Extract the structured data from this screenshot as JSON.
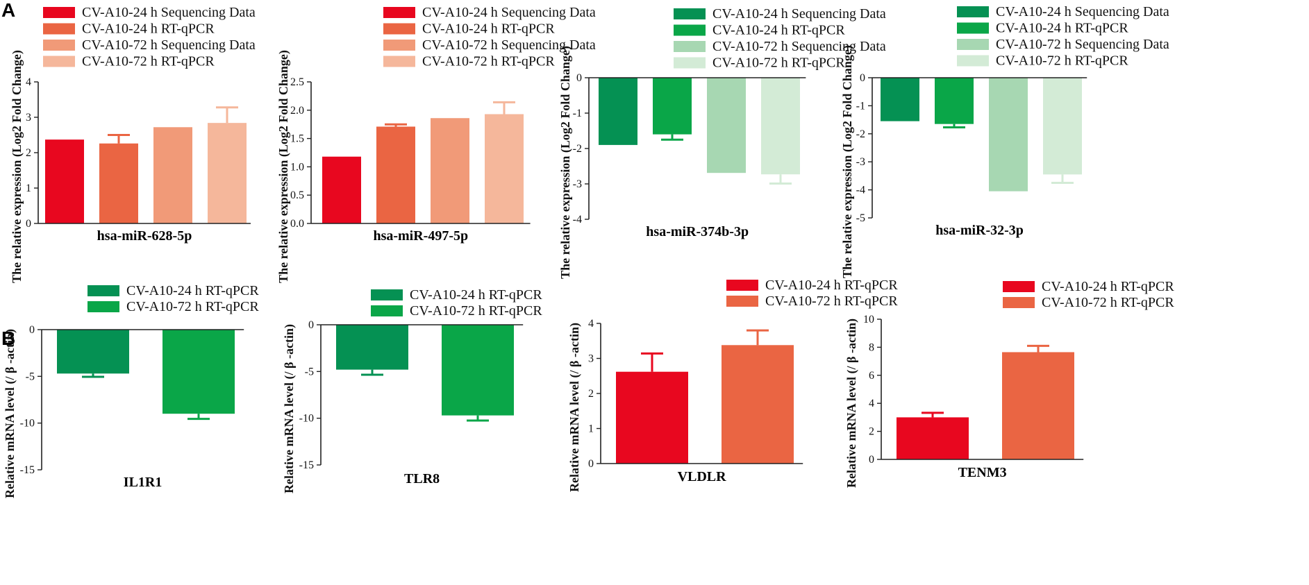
{
  "panels": {
    "a": "A",
    "b": "B"
  },
  "chart_data": [
    {
      "type": "bar",
      "title": "hsa-miR-628-5p",
      "ylabel": "The relative expression (Log2 Fold Change)",
      "ylim": [
        0,
        4
      ],
      "yticks": [
        0,
        1,
        2,
        3,
        4
      ],
      "ytick_labels": [
        "0",
        "1",
        "2",
        "3",
        "4"
      ],
      "series": [
        {
          "name": "CV-A10-24 h Sequencing Data",
          "value": 2.37,
          "error": 0,
          "color": "#e8071f"
        },
        {
          "name": "CV-A10-24 h RT-qPCR",
          "value": 2.26,
          "error": 0.24,
          "color": "#ea6543"
        },
        {
          "name": "CV-A10-72 h Sequencing Data",
          "value": 2.72,
          "error": 0,
          "color": "#f19a78"
        },
        {
          "name": "CV-A10-72 h RT-qPCR",
          "value": 2.84,
          "error": 0.44,
          "color": "#f5b79b"
        }
      ]
    },
    {
      "type": "bar",
      "title": "hsa-miR-497-5p",
      "ylabel": "The relative expression (Log2 Fold Change)",
      "ylim": [
        0,
        2.5
      ],
      "yticks": [
        0,
        0.5,
        1,
        1.5,
        2,
        2.5
      ],
      "ytick_labels": [
        "0.0",
        "0.5",
        "1.0",
        "1.5",
        "2.0",
        "2.5"
      ],
      "series": [
        {
          "name": "CV-A10-24 h Sequencing Data",
          "value": 1.18,
          "error": 0,
          "color": "#e8071f"
        },
        {
          "name": "CV-A10-24 h RT-qPCR",
          "value": 1.71,
          "error": 0.04,
          "color": "#ea6543"
        },
        {
          "name": "CV-A10-72 h Sequencing Data",
          "value": 1.86,
          "error": 0,
          "color": "#f19a78"
        },
        {
          "name": "CV-A10-72 h RT-qPCR",
          "value": 1.93,
          "error": 0.21,
          "color": "#f5b79b"
        }
      ]
    },
    {
      "type": "bar",
      "title": "hsa-miR-374b-3p",
      "ylabel": "The relative expression (Log2 Fold Change)",
      "ylim": [
        -4,
        0
      ],
      "yticks": [
        -4,
        -3,
        -2,
        -1,
        0
      ],
      "ytick_labels": [
        "-4",
        "-3",
        "-2",
        "-1",
        "0"
      ],
      "series": [
        {
          "name": "CV-A10-24 h Sequencing Data",
          "value": -1.9,
          "error": 0,
          "color": "#059153"
        },
        {
          "name": "CV-A10-24 h RT-qPCR",
          "value": -1.6,
          "error": 0.15,
          "color": "#0aa648"
        },
        {
          "name": "CV-A10-72 h Sequencing Data",
          "value": -2.69,
          "error": 0,
          "color": "#a7d7b2"
        },
        {
          "name": "CV-A10-72 h RT-qPCR",
          "value": -2.73,
          "error": 0.26,
          "color": "#d3ebd6"
        }
      ]
    },
    {
      "type": "bar",
      "title": "hsa-miR-32-3p",
      "ylabel": "The relative expression (Log2 Fold Change)",
      "ylim": [
        -5,
        0
      ],
      "yticks": [
        -5,
        -4,
        -3,
        -2,
        -1,
        0
      ],
      "ytick_labels": [
        "-5",
        "-4",
        "-3",
        "-2",
        "-1",
        "0"
      ],
      "series": [
        {
          "name": "CV-A10-24 h Sequencing Data",
          "value": -1.55,
          "error": 0,
          "color": "#059153"
        },
        {
          "name": "CV-A10-24 h RT-qPCR",
          "value": -1.65,
          "error": 0.12,
          "color": "#0aa648"
        },
        {
          "name": "CV-A10-72 h Sequencing Data",
          "value": -4.05,
          "error": 0,
          "color": "#a7d7b2"
        },
        {
          "name": "CV-A10-72 h RT-qPCR",
          "value": -3.45,
          "error": 0.3,
          "color": "#d3ebd6"
        }
      ]
    },
    {
      "type": "bar",
      "title": "IL1R1",
      "ylabel": "Relative mRNA level (/ β -actin)",
      "ylim": [
        -15,
        0
      ],
      "yticks": [
        -15,
        -10,
        -5,
        0
      ],
      "ytick_labels": [
        "-15",
        "-10",
        "-5",
        "0"
      ],
      "series": [
        {
          "name": "CV-A10-24 h RT-qPCR",
          "value": -4.7,
          "error": 0.35,
          "color": "#059153"
        },
        {
          "name": "CV-A10-72 h RT-qPCR",
          "value": -9.0,
          "error": 0.55,
          "color": "#0aa648"
        }
      ]
    },
    {
      "type": "bar",
      "title": "TLR8",
      "ylabel": "Relative mRNA level (/ β -actin)",
      "ylim": [
        -15,
        0
      ],
      "yticks": [
        -15,
        -10,
        -5,
        0
      ],
      "ytick_labels": [
        "-15",
        "-10",
        "-5",
        "0"
      ],
      "series": [
        {
          "name": "CV-A10-24 h RT-qPCR",
          "value": -4.8,
          "error": 0.55,
          "color": "#059153"
        },
        {
          "name": "CV-A10-72 h RT-qPCR",
          "value": -9.7,
          "error": 0.55,
          "color": "#0aa648"
        }
      ]
    },
    {
      "type": "bar",
      "title": "VLDLR",
      "ylabel": "Relative mRNA level (/ β -actin)",
      "ylim": [
        0,
        4
      ],
      "yticks": [
        0,
        1,
        2,
        3,
        4
      ],
      "ytick_labels": [
        "0",
        "1",
        "2",
        "3",
        "4"
      ],
      "series": [
        {
          "name": "CV-A10-24 h RT-qPCR",
          "value": 2.62,
          "error": 0.52,
          "color": "#e8071f"
        },
        {
          "name": "CV-A10-72 h RT-qPCR",
          "value": 3.38,
          "error": 0.42,
          "color": "#ea6543"
        }
      ]
    },
    {
      "type": "bar",
      "title": "TENM3",
      "ylabel": "Relative mRNA level (/ β -actin)",
      "ylim": [
        0,
        10
      ],
      "yticks": [
        0,
        2,
        4,
        6,
        8,
        10
      ],
      "ytick_labels": [
        "0",
        "2",
        "4",
        "6",
        "8",
        "10"
      ],
      "series": [
        {
          "name": "CV-A10-24 h RT-qPCR",
          "value": 3.0,
          "error": 0.32,
          "color": "#e8071f"
        },
        {
          "name": "CV-A10-72 h RT-qPCR",
          "value": 7.65,
          "error": 0.45,
          "color": "#ea6543"
        }
      ]
    }
  ]
}
